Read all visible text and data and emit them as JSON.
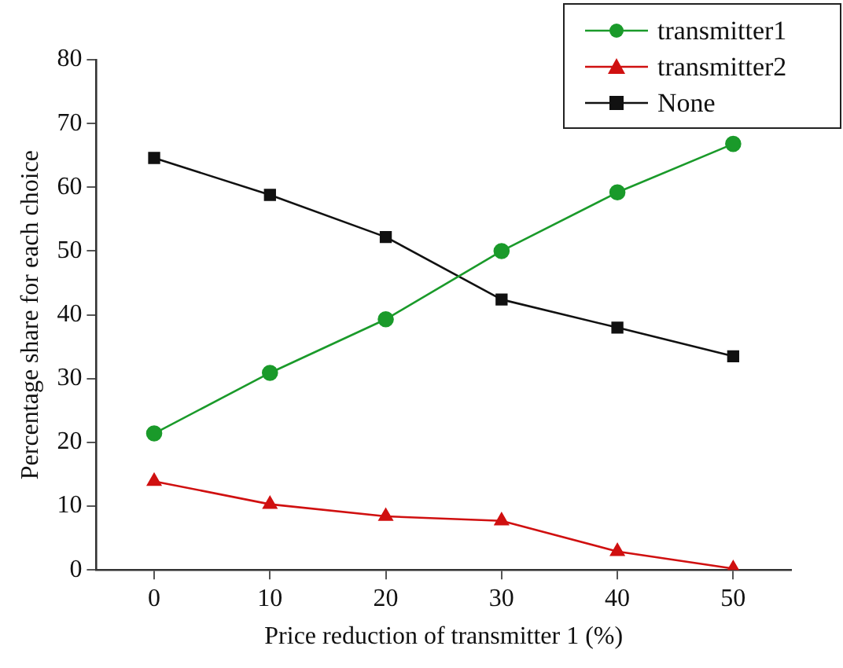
{
  "chart_data": {
    "type": "line",
    "xlabel": "Price reduction of transmitter 1 (%)",
    "ylabel": "Percentage share for each choice",
    "x": [
      0,
      10,
      20,
      30,
      40,
      50
    ],
    "series": [
      {
        "name": "transmitter1",
        "color": "#1a9a2a",
        "marker": "circle",
        "values": [
          21.4,
          30.9,
          39.3,
          50.0,
          59.2,
          66.8
        ]
      },
      {
        "name": "transmitter2",
        "color": "#d01010",
        "marker": "triangle",
        "values": [
          13.9,
          10.3,
          8.4,
          7.7,
          2.9,
          0.2
        ]
      },
      {
        "name": "None",
        "color": "#111111",
        "marker": "square",
        "values": [
          64.6,
          58.8,
          52.2,
          42.4,
          38.0,
          33.5
        ]
      }
    ],
    "xlim": [
      -5,
      55
    ],
    "xticks": [
      0,
      10,
      20,
      30,
      40,
      50
    ],
    "ylim": [
      0,
      80
    ],
    "yticks": [
      0,
      10,
      20,
      30,
      40,
      50,
      60,
      70,
      80
    ],
    "grid": false,
    "legend": "top right",
    "line_style": "solid"
  }
}
